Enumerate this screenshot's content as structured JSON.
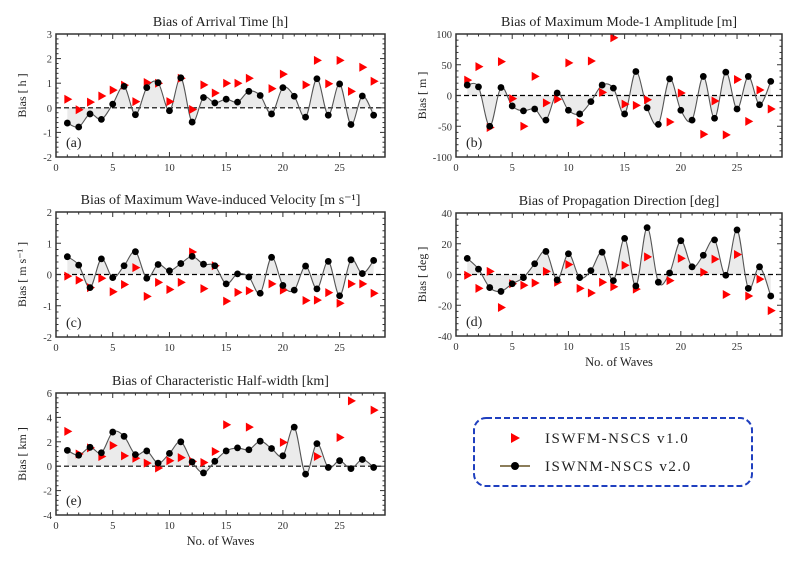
{
  "legend": {
    "items": [
      {
        "label": "ISWFM-NSCS v1.0",
        "marker": "red-triangle",
        "color": "#ff0000"
      },
      {
        "label": "ISWNM-NSCS v2.0",
        "marker": "black-dot-line",
        "color": "#000000",
        "line_color": "#8b7d5a"
      }
    ],
    "border_color": "#1f3fbf"
  },
  "colors": {
    "fill": "#ebebeb",
    "curve": "#555555",
    "zero_line": "#000000"
  },
  "chart_data": [
    {
      "type": "line",
      "title": "Bias of Arrival Time [h]",
      "ylabel": "Bias [ h ]",
      "xlabel": "",
      "panel_label": "(a)",
      "xlim": [
        0,
        29
      ],
      "ylim": [
        -2,
        3
      ],
      "xticks": [
        0,
        5,
        10,
        15,
        20,
        25
      ],
      "yticks": [
        -2,
        -1,
        0,
        1,
        2,
        3
      ],
      "x": [
        1,
        2,
        3,
        4,
        5,
        6,
        7,
        8,
        9,
        10,
        11,
        12,
        13,
        14,
        15,
        16,
        17,
        18,
        19,
        20,
        21,
        22,
        23,
        24,
        25,
        26,
        27,
        28
      ],
      "series": [
        {
          "name": "ISWFM-NSCS v1.0",
          "values": [
            0.35,
            -0.08,
            0.23,
            0.48,
            0.72,
            0.92,
            0.25,
            1.03,
            1.0,
            0.25,
            1.2,
            -0.07,
            0.93,
            0.6,
            1.0,
            1.0,
            1.2,
            null,
            0.78,
            1.37,
            null,
            0.93,
            1.93,
            0.98,
            1.93,
            0.67,
            1.65,
            1.08
          ]
        },
        {
          "name": "ISWNM-NSCS v2.0",
          "values": [
            -0.62,
            -0.78,
            -0.25,
            -0.47,
            0.15,
            0.87,
            -0.28,
            0.82,
            1.02,
            -0.12,
            1.22,
            -0.58,
            0.42,
            0.2,
            0.35,
            0.23,
            0.67,
            0.5,
            -0.25,
            0.82,
            0.47,
            -0.38,
            1.18,
            -0.3,
            0.97,
            -0.68,
            0.48,
            -0.3
          ]
        }
      ]
    },
    {
      "type": "line",
      "title": "Bias of Maximum Mode-1 Amplitude [m]",
      "ylabel": "Bias [ m ]",
      "xlabel": "",
      "panel_label": "(b)",
      "xlim": [
        0,
        29
      ],
      "ylim": [
        -100,
        100
      ],
      "xticks": [
        0,
        5,
        10,
        15,
        20,
        25
      ],
      "yticks": [
        -100,
        -50,
        0,
        50,
        100
      ],
      "x": [
        1,
        2,
        3,
        4,
        5,
        6,
        7,
        8,
        9,
        10,
        11,
        12,
        13,
        14,
        15,
        16,
        17,
        18,
        19,
        20,
        21,
        22,
        23,
        24,
        25,
        26,
        27,
        28
      ],
      "series": [
        {
          "name": "ISWFM-NSCS v1.0",
          "values": [
            25,
            47,
            -52,
            55,
            -5,
            -50,
            31,
            -12,
            -6,
            53,
            -44,
            56,
            5,
            94,
            -14,
            -16,
            -7,
            null,
            -43,
            4,
            null,
            -63,
            -9,
            -64,
            26,
            -42,
            9,
            -22
          ]
        },
        {
          "name": "ISWNM-NSCS v2.0",
          "values": [
            17,
            14,
            -50,
            13,
            -17,
            -25,
            -22,
            -40,
            4,
            -24,
            -30,
            -10,
            17,
            12,
            -30,
            39,
            -20,
            -47,
            27,
            -24,
            -40,
            31,
            -37,
            38,
            -22,
            31,
            -15,
            23
          ]
        }
      ]
    },
    {
      "type": "line",
      "title": "Bias of Maximum Wave-induced Velocity [m s⁻¹]",
      "ylabel": "Bias [ m s⁻¹ ]",
      "xlabel": "",
      "panel_label": "(c)",
      "xlim": [
        0,
        29
      ],
      "ylim": [
        -2,
        2
      ],
      "xticks": [
        0,
        5,
        10,
        15,
        20,
        25
      ],
      "yticks": [
        -2,
        -1,
        0,
        1,
        2
      ],
      "x": [
        1,
        2,
        3,
        4,
        5,
        6,
        7,
        8,
        9,
        10,
        11,
        12,
        13,
        14,
        15,
        16,
        17,
        18,
        19,
        20,
        21,
        22,
        23,
        24,
        25,
        26,
        27,
        28
      ],
      "series": [
        {
          "name": "ISWFM-NSCS v1.0",
          "values": [
            -0.05,
            -0.18,
            -0.42,
            -0.12,
            -0.55,
            -0.32,
            0.22,
            -0.7,
            -0.25,
            -0.48,
            -0.25,
            0.72,
            -0.45,
            0.28,
            -0.85,
            -0.57,
            -0.52,
            null,
            -0.3,
            -0.5,
            null,
            -0.83,
            -0.82,
            -0.58,
            -0.92,
            -0.3,
            -0.3,
            -0.6
          ]
        },
        {
          "name": "ISWNM-NSCS v2.0",
          "values": [
            0.57,
            0.3,
            -0.42,
            0.5,
            -0.1,
            0.28,
            0.73,
            -0.12,
            0.32,
            0.12,
            0.35,
            0.58,
            0.33,
            0.28,
            -0.3,
            0.02,
            -0.08,
            -0.6,
            0.55,
            -0.35,
            -0.5,
            0.27,
            -0.46,
            0.42,
            -0.68,
            0.47,
            0.03,
            0.45
          ]
        }
      ]
    },
    {
      "type": "line",
      "title": "Bias of Propagation Direction [deg]",
      "ylabel": "Bias [ deg ]",
      "xlabel": "No. of Waves",
      "panel_label": "(d)",
      "xlim": [
        0,
        29
      ],
      "ylim": [
        -40,
        40
      ],
      "xticks": [
        0,
        5,
        10,
        15,
        20,
        25
      ],
      "yticks": [
        -40,
        -20,
        0,
        20,
        40
      ],
      "x": [
        1,
        2,
        3,
        4,
        5,
        6,
        7,
        8,
        9,
        10,
        11,
        12,
        13,
        14,
        15,
        16,
        17,
        18,
        19,
        20,
        21,
        22,
        23,
        24,
        25,
        26,
        27,
        28
      ],
      "series": [
        {
          "name": "ISWFM-NSCS v1.0",
          "values": [
            -0.5,
            -9,
            2,
            -21.5,
            -6,
            -7,
            -5.5,
            2,
            -5,
            6.5,
            -9,
            -12,
            -5,
            -8,
            6,
            -9.5,
            11.5,
            null,
            -4,
            10.5,
            null,
            1.5,
            10,
            -13,
            13,
            -14,
            -3,
            -23.5
          ]
        },
        {
          "name": "ISWNM-NSCS v2.0",
          "values": [
            10.5,
            3.5,
            -8.5,
            -11,
            -6,
            -2,
            7,
            15,
            -3.5,
            13.5,
            -2,
            2.5,
            14.5,
            -4,
            23.5,
            -7.5,
            30.5,
            -5,
            1,
            22,
            5,
            12.5,
            22.5,
            -0.5,
            29,
            -9,
            5,
            -14
          ]
        }
      ]
    },
    {
      "type": "line",
      "title": "Bias of Characteristic Half-width [km]",
      "ylabel": "Bias [ km ]",
      "xlabel": "No. of Waves",
      "panel_label": "(e)",
      "xlim": [
        0,
        29
      ],
      "ylim": [
        -4,
        6
      ],
      "xticks": [
        0,
        5,
        10,
        15,
        20,
        25
      ],
      "yticks": [
        -4,
        -2,
        0,
        2,
        4,
        6
      ],
      "x": [
        1,
        2,
        3,
        4,
        5,
        6,
        7,
        8,
        9,
        10,
        11,
        12,
        13,
        14,
        15,
        16,
        17,
        18,
        19,
        20,
        21,
        22,
        23,
        24,
        25,
        26,
        27,
        28
      ],
      "series": [
        {
          "name": "ISWFM-NSCS v1.0",
          "values": [
            2.85,
            1.0,
            1.5,
            0.8,
            1.7,
            0.85,
            0.65,
            0.25,
            -0.15,
            0.45,
            0.7,
            0.4,
            0.3,
            1.2,
            3.4,
            null,
            3.2,
            null,
            null,
            1.95,
            null,
            null,
            0.8,
            null,
            2.35,
            5.35,
            null,
            4.6
          ]
        },
        {
          "name": "ISWNM-NSCS v2.0",
          "values": [
            1.3,
            0.9,
            1.55,
            1.1,
            2.8,
            2.45,
            0.95,
            1.25,
            0.25,
            1.05,
            2.0,
            0.35,
            -0.55,
            0.4,
            1.25,
            1.5,
            1.35,
            2.05,
            1.45,
            0.85,
            3.2,
            -0.65,
            1.85,
            -0.1,
            0.45,
            -0.2,
            0.55,
            -0.1
          ]
        }
      ]
    }
  ]
}
